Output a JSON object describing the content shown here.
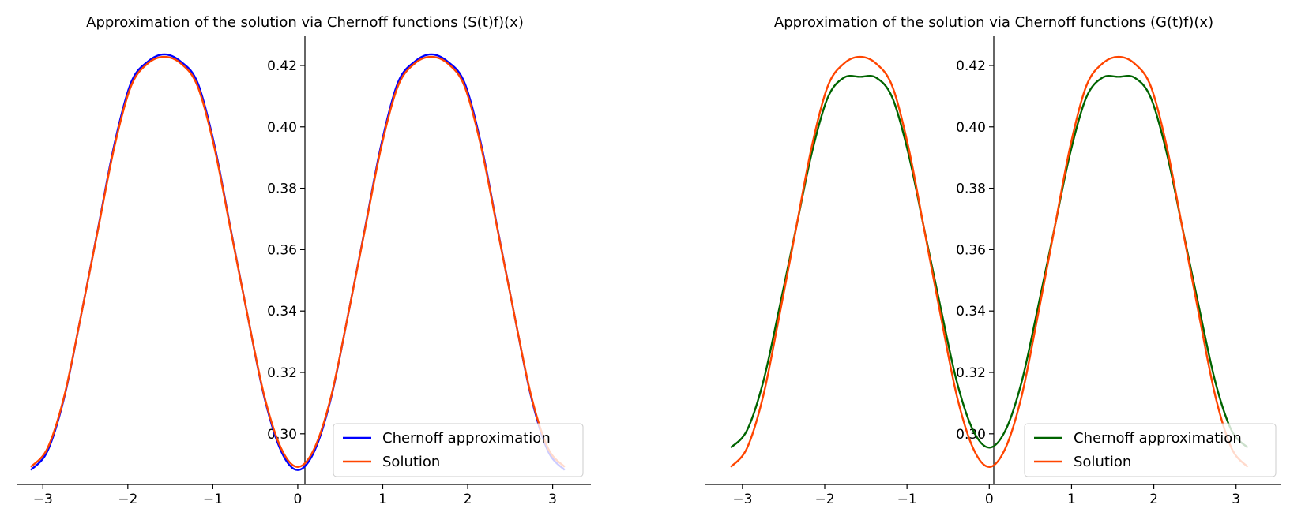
{
  "chart_data": [
    {
      "type": "line",
      "title": "Approximation of the solution via Chernoff functions (S(t)f)(x)",
      "xlim": [
        -3.3,
        3.45
      ],
      "ylim": [
        0.2835,
        0.4295
      ],
      "x_ticks": [
        "−3",
        "−2",
        "−1",
        "0",
        "1",
        "2",
        "3"
      ],
      "y_ticks": [
        "0.30",
        "0.32",
        "0.34",
        "0.36",
        "0.38",
        "0.40",
        "0.42"
      ],
      "legend_position": "lower right",
      "series": [
        {
          "name": "Chernoff approximation",
          "color": "#0000ff",
          "x": [
            -3.1416,
            -2.9452,
            -2.7489,
            -2.5525,
            -2.3562,
            -2.1598,
            -1.9635,
            -1.7671,
            -1.5708,
            -1.3744,
            -1.1781,
            -0.9817,
            -0.7854,
            -0.589,
            -0.3927,
            -0.1963,
            0.0,
            0.1963,
            0.3927,
            0.589,
            0.7854,
            0.9817,
            1.1781,
            1.3744,
            1.5708,
            1.7671,
            1.9635,
            2.1598,
            2.3562,
            2.5525,
            2.7489,
            2.9452,
            3.1416
          ],
          "y": [
            0.2882,
            0.2944,
            0.3118,
            0.3383,
            0.3661,
            0.3941,
            0.4143,
            0.4212,
            0.4236,
            0.4212,
            0.4143,
            0.3941,
            0.3661,
            0.3383,
            0.3118,
            0.2944,
            0.2882,
            0.2944,
            0.3118,
            0.3383,
            0.3661,
            0.3941,
            0.4143,
            0.4212,
            0.4236,
            0.4212,
            0.4143,
            0.3941,
            0.3661,
            0.3383,
            0.3118,
            0.2944,
            0.2882
          ]
        },
        {
          "name": "Solution",
          "color": "#ff4500",
          "x": [
            -3.1416,
            -2.9452,
            -2.7489,
            -2.5525,
            -2.3562,
            -2.1598,
            -1.9635,
            -1.7671,
            -1.5708,
            -1.3744,
            -1.1781,
            -0.9817,
            -0.7854,
            -0.589,
            -0.3927,
            -0.1963,
            0.0,
            0.1963,
            0.3927,
            0.589,
            0.7854,
            0.9817,
            1.1781,
            1.3744,
            1.5708,
            1.7671,
            1.9635,
            2.1598,
            2.3562,
            2.5525,
            2.7489,
            2.9452,
            3.1416
          ],
          "y": [
            0.2892,
            0.2953,
            0.3122,
            0.3383,
            0.3658,
            0.3933,
            0.4132,
            0.4206,
            0.4228,
            0.4206,
            0.4132,
            0.3933,
            0.3658,
            0.3383,
            0.3122,
            0.2953,
            0.2892,
            0.2953,
            0.3122,
            0.3383,
            0.3658,
            0.3933,
            0.4132,
            0.4206,
            0.4228,
            0.4206,
            0.4132,
            0.3933,
            0.3658,
            0.3383,
            0.3122,
            0.2953,
            0.2892
          ]
        }
      ]
    },
    {
      "type": "line",
      "title": "Approximation of the solution via Chernoff functions (G(t)f)(x)",
      "xlim": [
        -3.45,
        3.55
      ],
      "ylim": [
        0.2835,
        0.4295
      ],
      "x_ticks": [
        "−3",
        "−2",
        "−1",
        "0",
        "1",
        "2",
        "3"
      ],
      "y_ticks": [
        "0.30",
        "0.32",
        "0.34",
        "0.36",
        "0.38",
        "0.40",
        "0.42"
      ],
      "legend_position": "lower right",
      "series": [
        {
          "name": "Chernoff approximation",
          "color": "#006400",
          "x": [
            -3.1416,
            -2.9452,
            -2.7489,
            -2.5525,
            -2.3562,
            -2.1598,
            -1.9635,
            -1.7671,
            -1.5708,
            -1.3744,
            -1.1781,
            -0.9817,
            -0.7854,
            -0.589,
            -0.3927,
            -0.1963,
            0.0,
            0.1963,
            0.3927,
            0.589,
            0.7854,
            0.9817,
            1.1781,
            1.3744,
            1.5708,
            1.7671,
            1.9635,
            2.1598,
            2.3562,
            2.5525,
            2.7489,
            2.9452,
            3.1416
          ],
          "y": [
            0.2955,
            0.3011,
            0.3168,
            0.3408,
            0.366,
            0.3912,
            0.4095,
            0.416,
            0.4163,
            0.416,
            0.4095,
            0.3912,
            0.366,
            0.3408,
            0.3168,
            0.3011,
            0.2955,
            0.3011,
            0.3168,
            0.3408,
            0.366,
            0.3912,
            0.4095,
            0.416,
            0.4163,
            0.416,
            0.4095,
            0.3912,
            0.366,
            0.3408,
            0.3168,
            0.3011,
            0.2955
          ]
        },
        {
          "name": "Solution",
          "color": "#ff4500",
          "x": [
            -3.1416,
            -2.9452,
            -2.7489,
            -2.5525,
            -2.3562,
            -2.1598,
            -1.9635,
            -1.7671,
            -1.5708,
            -1.3744,
            -1.1781,
            -0.9817,
            -0.7854,
            -0.589,
            -0.3927,
            -0.1963,
            0.0,
            0.1963,
            0.3927,
            0.589,
            0.7854,
            0.9817,
            1.1781,
            1.3744,
            1.5708,
            1.7671,
            1.9635,
            2.1598,
            2.3562,
            2.5525,
            2.7489,
            2.9452,
            3.1416
          ],
          "y": [
            0.2892,
            0.2953,
            0.3122,
            0.3383,
            0.3658,
            0.3933,
            0.4132,
            0.4206,
            0.4228,
            0.4206,
            0.4132,
            0.3933,
            0.3658,
            0.3383,
            0.3122,
            0.2953,
            0.2892,
            0.2953,
            0.3122,
            0.3383,
            0.3658,
            0.3933,
            0.4132,
            0.4206,
            0.4228,
            0.4206,
            0.4132,
            0.3933,
            0.3658,
            0.3383,
            0.3122,
            0.2953,
            0.2892
          ]
        }
      ]
    }
  ]
}
